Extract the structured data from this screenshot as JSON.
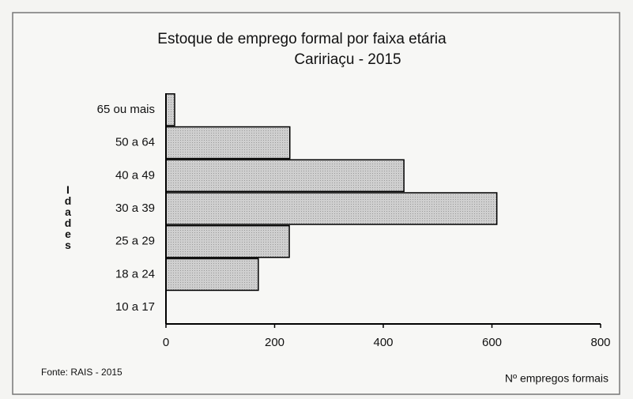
{
  "chart_data": {
    "type": "bar",
    "orientation": "horizontal",
    "title": "Estoque de emprego formal por faixa etária",
    "subtitle": "Caririaçu - 2015",
    "y_label": "Idades",
    "x_label": "Nº empregos formais",
    "source": "Fonte: RAIS - 2015",
    "categories": [
      "65 ou mais",
      "50 a 64",
      "40 a 49",
      "30 a 39",
      "25 a 29",
      "18 a 24",
      "10 a 17"
    ],
    "values": [
      16,
      228,
      438,
      609,
      227,
      170,
      0
    ],
    "color": "#c4c4c4",
    "xlim": [
      0,
      800
    ],
    "xticks": [
      0,
      200,
      400,
      600,
      800
    ],
    "grid": false
  }
}
